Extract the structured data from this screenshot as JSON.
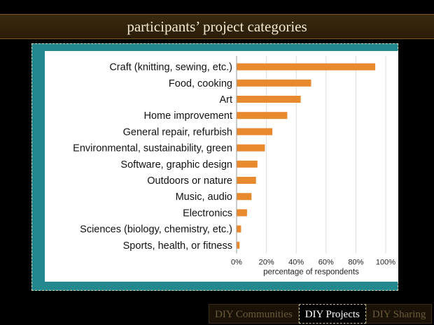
{
  "slide": {
    "title": "participants’ project categories"
  },
  "nav": {
    "tabs": [
      {
        "label": "DIY Communities",
        "active": false
      },
      {
        "label": "DIY Projects",
        "active": true
      },
      {
        "label": "DIY Sharing",
        "active": false
      }
    ]
  },
  "colors": {
    "bar": "#e8892e",
    "frame": "#23898f",
    "title_bar": "#2a1c08"
  },
  "chart_data": {
    "type": "bar",
    "orientation": "horizontal",
    "categories": [
      "Craft (knitting, sewing, etc.)",
      "Food, cooking",
      "Art",
      "Home improvement",
      "General repair, refurbish",
      "Environmental, sustainability, green",
      "Software, graphic design",
      "Outdoors or nature",
      "Music, audio",
      "Electronics",
      "Sciences (biology, chemistry, etc.)",
      "Sports, health, or fitness"
    ],
    "values": [
      93,
      50,
      43,
      34,
      24,
      19,
      14,
      13,
      10,
      7,
      3,
      2
    ],
    "xlabel": "percentage of respondents",
    "xlim": [
      0,
      100
    ],
    "xticks": [
      "0%",
      "20%",
      "40%",
      "60%",
      "80%",
      "100%"
    ],
    "grid": true
  }
}
